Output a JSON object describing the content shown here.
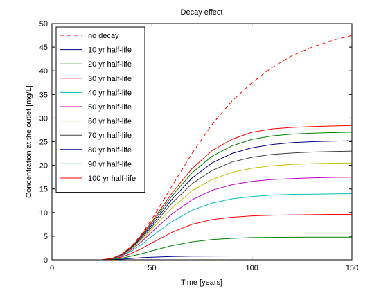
{
  "chart_data": {
    "type": "line",
    "title": "Decay effect",
    "xlabel": "Time [years]",
    "ylabel": "Concentration at the outlet [mg/L]",
    "xlim": [
      0,
      150
    ],
    "ylim": [
      0,
      50
    ],
    "xticks": [
      0,
      50,
      100,
      150
    ],
    "yticks": [
      0,
      5,
      10,
      15,
      20,
      25,
      30,
      35,
      40,
      45,
      50
    ],
    "grid": false,
    "legend_position": "top-left",
    "x": [
      0,
      25,
      30,
      35,
      40,
      45,
      50,
      60,
      70,
      80,
      90,
      100,
      110,
      120,
      130,
      140,
      150
    ],
    "series": [
      {
        "name": "no decay",
        "color": "#ff0000",
        "dash": true,
        "values": [
          0,
          0,
          0.3,
          1.2,
          3.0,
          5.5,
          8.6,
          15.6,
          22.5,
          28.6,
          33.6,
          37.5,
          40.7,
          43.2,
          45.0,
          46.4,
          47.5
        ]
      },
      {
        "name": "10 yr half-life",
        "color": "#00008b",
        "dash": false,
        "values": [
          0,
          0,
          0.05,
          0.15,
          0.3,
          0.45,
          0.55,
          0.7,
          0.76,
          0.79,
          0.8,
          0.8,
          0.8,
          0.8,
          0.8,
          0.8,
          0.8
        ]
      },
      {
        "name": "20 yr half-life",
        "color": "#008000",
        "dash": false,
        "values": [
          0,
          0,
          0.1,
          0.35,
          0.8,
          1.3,
          1.9,
          3.0,
          3.8,
          4.3,
          4.55,
          4.7,
          4.75,
          4.78,
          4.8,
          4.8,
          4.8
        ]
      },
      {
        "name": "30 yr half-life",
        "color": "#ff0000",
        "dash": false,
        "values": [
          0,
          0,
          0.2,
          0.6,
          1.4,
          2.4,
          3.6,
          5.8,
          7.5,
          8.5,
          9.0,
          9.3,
          9.45,
          9.5,
          9.55,
          9.6,
          9.6
        ]
      },
      {
        "name": "40 yr half-life",
        "color": "#00bfbf",
        "dash": false,
        "values": [
          0,
          0,
          0.22,
          0.8,
          1.9,
          3.3,
          5.0,
          8.1,
          10.5,
          12.0,
          12.9,
          13.4,
          13.7,
          13.85,
          13.9,
          13.95,
          14.0
        ]
      },
      {
        "name": "50 yr half-life",
        "color": "#bf00bf",
        "dash": false,
        "values": [
          0,
          0,
          0.24,
          0.9,
          2.2,
          3.9,
          5.9,
          9.7,
          12.7,
          14.7,
          15.9,
          16.6,
          17.0,
          17.2,
          17.35,
          17.45,
          17.5
        ]
      },
      {
        "name": "60 yr half-life",
        "color": "#bfbf00",
        "dash": false,
        "values": [
          0,
          0,
          0.25,
          1.0,
          2.4,
          4.3,
          6.5,
          11.0,
          14.6,
          17.0,
          18.5,
          19.4,
          19.9,
          20.2,
          20.35,
          20.45,
          20.5
        ]
      },
      {
        "name": "70 yr half-life",
        "color": "#3f3f3f",
        "dash": false,
        "values": [
          0,
          0,
          0.26,
          1.05,
          2.6,
          4.6,
          7.0,
          12.0,
          16.1,
          18.9,
          20.7,
          21.7,
          22.3,
          22.6,
          22.8,
          22.9,
          23.0
        ]
      },
      {
        "name": "80 yr half-life",
        "color": "#00008b",
        "dash": false,
        "values": [
          0,
          0,
          0.27,
          1.1,
          2.7,
          4.9,
          7.4,
          12.8,
          17.3,
          20.5,
          22.5,
          23.7,
          24.4,
          24.8,
          25.0,
          25.1,
          25.2
        ]
      },
      {
        "name": "90 yr half-life",
        "color": "#008000",
        "dash": false,
        "values": [
          0,
          0,
          0.28,
          1.15,
          2.8,
          5.1,
          7.8,
          13.5,
          18.4,
          21.9,
          24.1,
          25.5,
          26.2,
          26.6,
          26.8,
          26.9,
          27.0
        ]
      },
      {
        "name": "100 yr half-life",
        "color": "#ff0000",
        "dash": false,
        "values": [
          0,
          0,
          0.29,
          1.2,
          2.9,
          5.3,
          8.1,
          14.1,
          19.3,
          23.1,
          25.5,
          27.0,
          27.7,
          28.0,
          28.2,
          28.3,
          28.4
        ]
      }
    ]
  }
}
